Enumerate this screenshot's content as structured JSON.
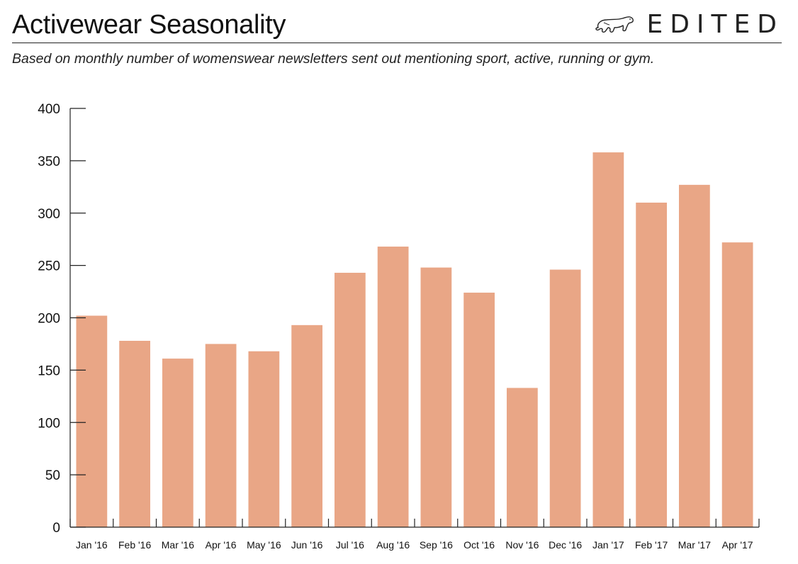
{
  "header": {
    "title": "Activewear Seasonality",
    "subtitle": "Based on monthly number of womenswear newsletters sent out mentioning sport, active, running or gym.",
    "brand": "EDITED",
    "brand_icon": "polar-bear-icon"
  },
  "colors": {
    "bar": "#E9A686",
    "axis": "#222222",
    "text": "#111111"
  },
  "chart_data": {
    "type": "bar",
    "title": "Activewear Seasonality",
    "subtitle": "Based on monthly number of womenswear newsletters sent out mentioning sport, active, running or gym.",
    "xlabel": "",
    "ylabel": "",
    "categories": [
      "Jan '16",
      "Feb '16",
      "Mar '16",
      "Apr '16",
      "May '16",
      "Jun '16",
      "Jul '16",
      "Aug '16",
      "Sep '16",
      "Oct '16",
      "Nov '16",
      "Dec '16",
      "Jan '17",
      "Feb '17",
      "Mar '17",
      "Apr '17"
    ],
    "values": [
      202,
      178,
      161,
      175,
      168,
      193,
      243,
      268,
      248,
      224,
      133,
      246,
      358,
      310,
      327,
      272
    ],
    "ylim": [
      0,
      400
    ],
    "yticks": [
      0,
      50,
      100,
      150,
      200,
      250,
      300,
      350,
      400
    ],
    "grid": false,
    "legend": "none"
  }
}
